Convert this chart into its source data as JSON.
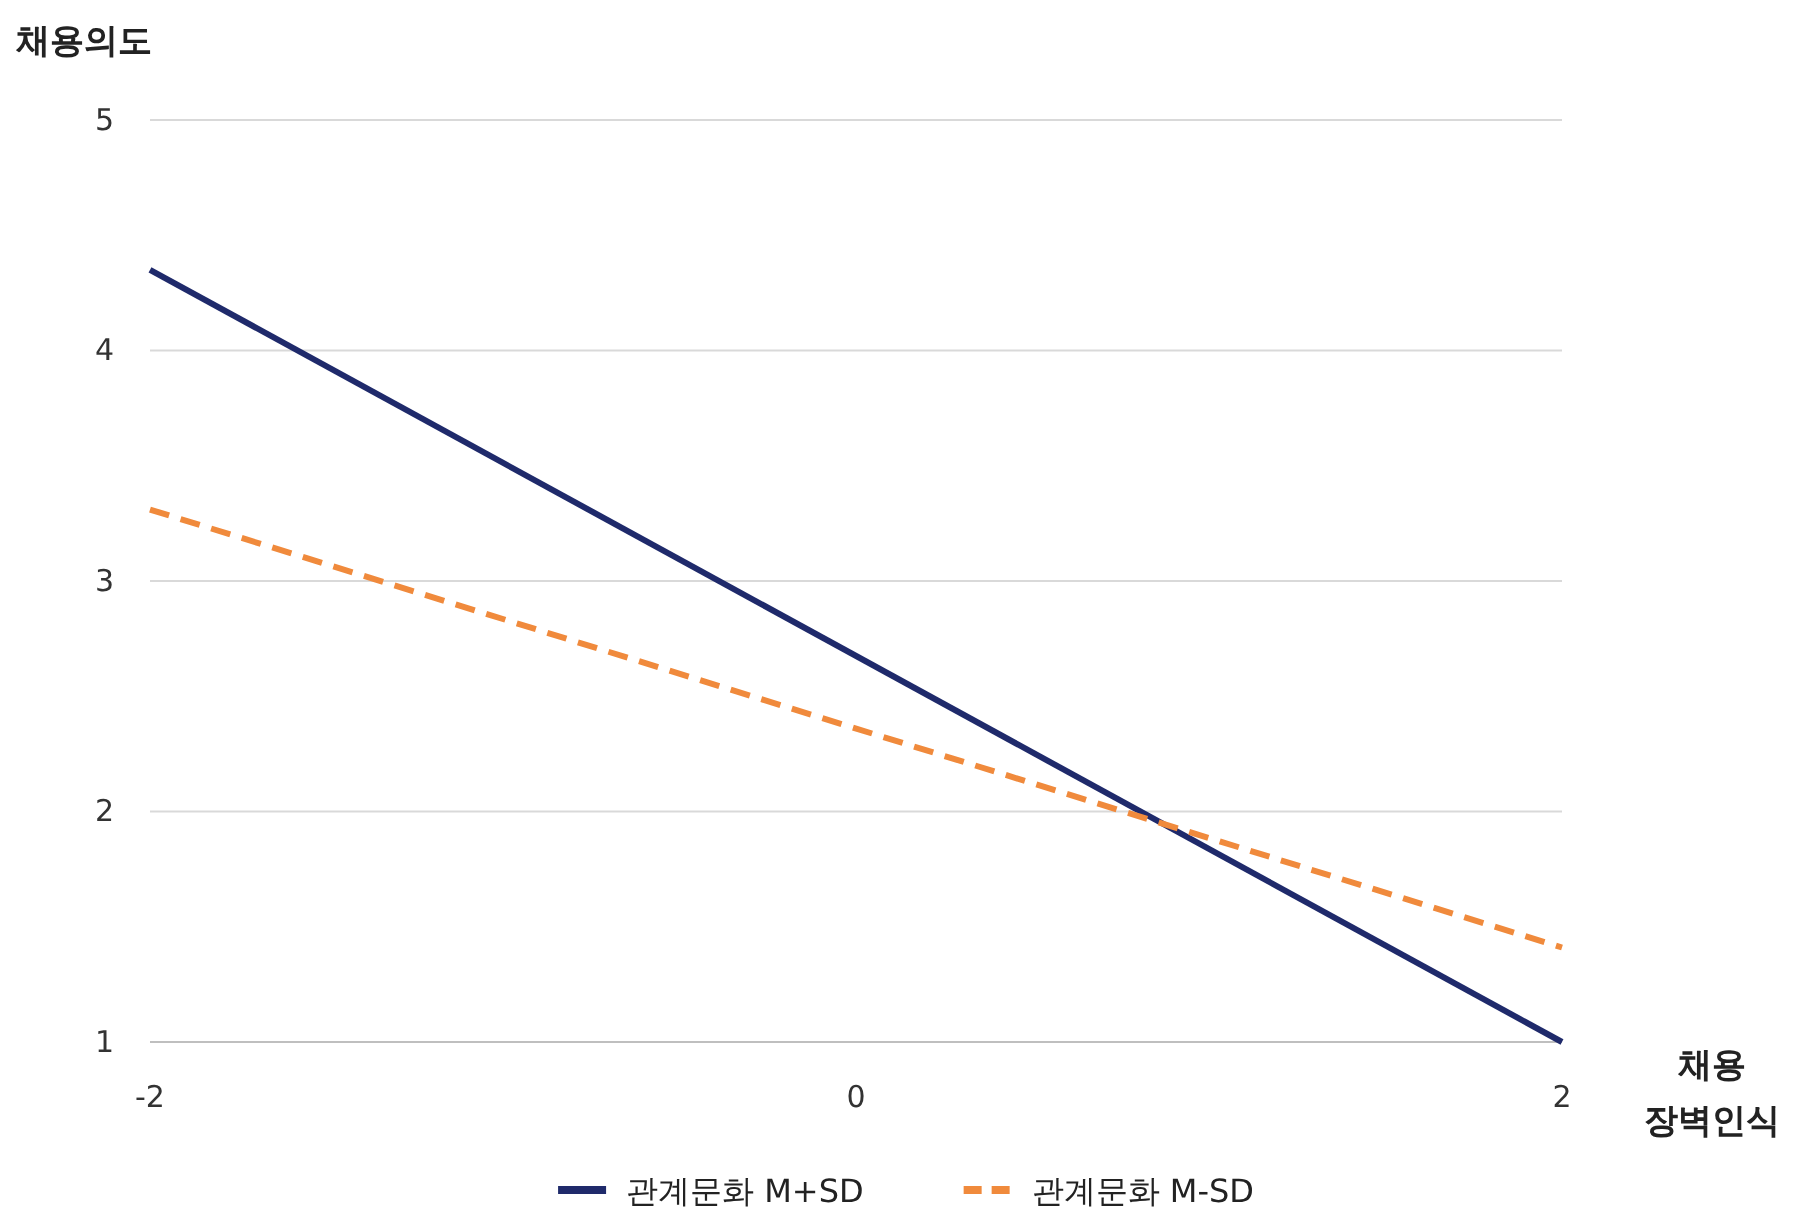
{
  "chart_data": {
    "type": "line",
    "ylabel": "채용의도",
    "xlabel": "채용\n장벽인식",
    "x": [
      -2,
      2
    ],
    "series": [
      {
        "name": "관계문화 M+SD",
        "color": "#1f2a6b",
        "values": [
          4.35,
          1.0
        ],
        "line_style": "solid"
      },
      {
        "name": "관계문화 M-SD",
        "color": "#f08a3c",
        "values": [
          3.31,
          1.41
        ],
        "line_style": "dashed"
      }
    ],
    "xlim": [
      -2,
      2
    ],
    "xticks": [
      -2,
      0,
      2
    ],
    "ylim": [
      1,
      5
    ],
    "yticks": [
      1,
      2,
      3,
      4,
      5
    ],
    "grid": "y",
    "legend": "bottom",
    "marker": "none"
  }
}
